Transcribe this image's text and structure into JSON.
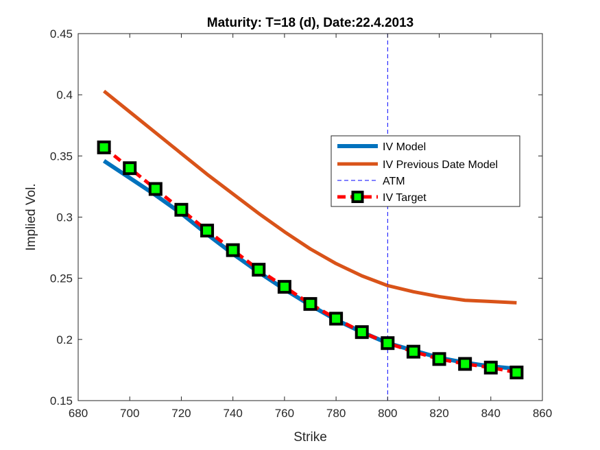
{
  "chart_data": {
    "type": "line",
    "title": "Maturity: T=18 (d), Date:22.4.2013",
    "xlabel": "Strike",
    "ylabel": "Implied Vol.",
    "xlim": [
      680,
      860
    ],
    "ylim": [
      0.15,
      0.45
    ],
    "xticks": [
      "680",
      "700",
      "720",
      "740",
      "760",
      "780",
      "800",
      "820",
      "840",
      "860"
    ],
    "yticks": [
      "0.15",
      "0.2",
      "0.25",
      "0.3",
      "0.35",
      "0.4",
      "0.45"
    ],
    "grid": false,
    "legend_position": "upper-right",
    "atm_strike": 800,
    "series": [
      {
        "name": "IV Model",
        "color": "#0072BD",
        "style": "solid",
        "x": [
          690,
          700,
          710,
          720,
          730,
          740,
          750,
          760,
          770,
          780,
          790,
          800,
          810,
          820,
          830,
          840,
          850
        ],
        "y": [
          0.346,
          0.332,
          0.318,
          0.303,
          0.286,
          0.27,
          0.255,
          0.241,
          0.228,
          0.216,
          0.206,
          0.197,
          0.191,
          0.185,
          0.181,
          0.178,
          0.176
        ]
      },
      {
        "name": "IV Previous Date Model",
        "color": "#D95319",
        "style": "solid",
        "x": [
          690,
          700,
          710,
          720,
          730,
          740,
          750,
          760,
          770,
          780,
          790,
          800,
          810,
          820,
          830,
          840,
          850
        ],
        "y": [
          0.403,
          0.386,
          0.369,
          0.352,
          0.335,
          0.319,
          0.303,
          0.288,
          0.274,
          0.262,
          0.252,
          0.244,
          0.239,
          0.235,
          0.232,
          0.231,
          0.23
        ]
      },
      {
        "name": "ATM",
        "color": "#0000FF",
        "style": "dashed-vertical"
      },
      {
        "name": "IV Target",
        "color": "#FF0000",
        "marker_fill": "#00FF00",
        "marker_edge": "#000000",
        "style": "dashed-markers",
        "x": [
          690,
          700,
          710,
          720,
          730,
          740,
          750,
          760,
          770,
          780,
          790,
          800,
          810,
          820,
          830,
          840,
          850
        ],
        "y": [
          0.357,
          0.34,
          0.323,
          0.306,
          0.289,
          0.273,
          0.257,
          0.243,
          0.229,
          0.217,
          0.206,
          0.197,
          0.19,
          0.184,
          0.18,
          0.177,
          0.173
        ]
      }
    ]
  }
}
